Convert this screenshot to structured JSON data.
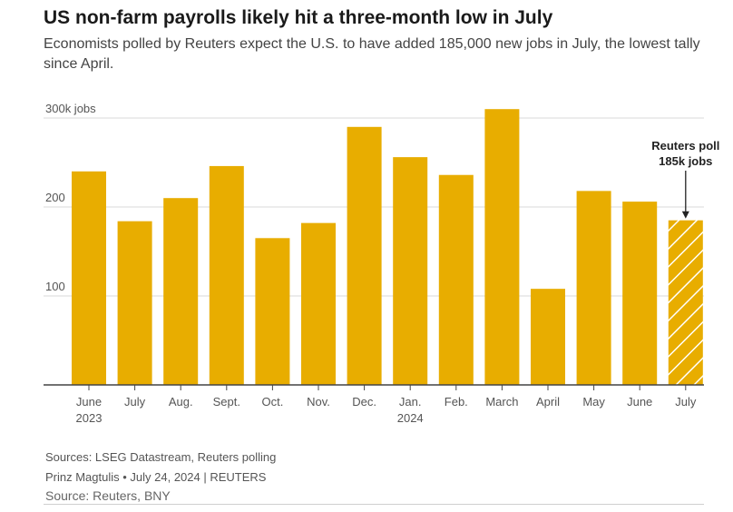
{
  "header": {
    "title": "US non-farm payrolls likely hit a three-month low in July",
    "subtitle": "Economists polled by Reuters expect the U.S. to have added 185,000 new jobs in July, the lowest tally since April."
  },
  "chart_data": {
    "type": "bar",
    "title": "US non-farm payrolls likely hit a three-month low in July",
    "xlabel": "",
    "ylabel": "jobs",
    "ylim": [
      0,
      300
    ],
    "y_ticks": [
      {
        "value": 300,
        "label": "300k jobs"
      },
      {
        "value": 200,
        "label": "200"
      },
      {
        "value": 100,
        "label": "100"
      }
    ],
    "grid": true,
    "categories": [
      {
        "label": "June",
        "sublabel": "2023",
        "value": 240
      },
      {
        "label": "July",
        "sublabel": "",
        "value": 184
      },
      {
        "label": "Aug.",
        "sublabel": "",
        "value": 210
      },
      {
        "label": "Sept.",
        "sublabel": "",
        "value": 246
      },
      {
        "label": "Oct.",
        "sublabel": "",
        "value": 165
      },
      {
        "label": "Nov.",
        "sublabel": "",
        "value": 182
      },
      {
        "label": "Dec.",
        "sublabel": "",
        "value": 290
      },
      {
        "label": "Jan.",
        "sublabel": "2024",
        "value": 256
      },
      {
        "label": "Feb.",
        "sublabel": "",
        "value": 236
      },
      {
        "label": "March",
        "sublabel": "",
        "value": 310
      },
      {
        "label": "April",
        "sublabel": "",
        "value": 108
      },
      {
        "label": "May",
        "sublabel": "",
        "value": 218
      },
      {
        "label": "June",
        "sublabel": "",
        "value": 206
      },
      {
        "label": "July",
        "sublabel": "",
        "value": 185,
        "forecast": true
      }
    ],
    "annotation": {
      "line1": "Reuters poll",
      "line2": "185k jobs",
      "target_index": 13
    },
    "colors": {
      "bar": "#e8ad00",
      "hatch": "#ffffff",
      "grid": "#d9d9d9",
      "axis": "#444444",
      "tick_text": "#555555"
    }
  },
  "footer": {
    "sources": "Sources: LSEG Datastream, Reuters polling",
    "byline": "Prinz Magtulis • July 24, 2024 | REUTERS",
    "source2": "Source: Reuters, BNY"
  }
}
